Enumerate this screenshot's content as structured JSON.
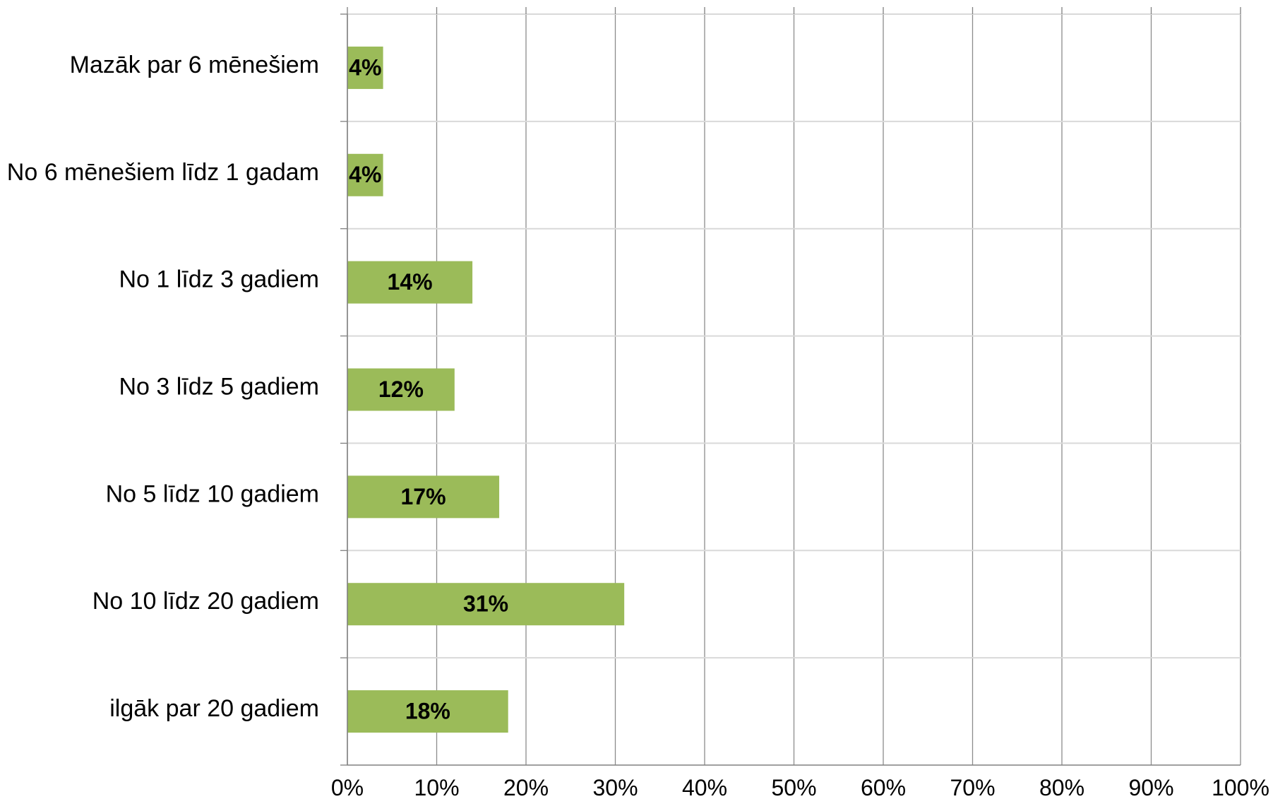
{
  "chart_data": {
    "type": "bar",
    "orientation": "horizontal",
    "categories": [
      "Mazāk par 6 mēnešiem",
      "No 6 mēnešiem līdz 1 gadam",
      "No 1 līdz 3 gadiem",
      "No 3 līdz 5 gadiem",
      "No 5 līdz 10 gadiem",
      "No 10 līdz 20 gadiem",
      "ilgāk par 20 gadiem"
    ],
    "values": [
      4,
      4,
      14,
      12,
      17,
      31,
      18
    ],
    "data_labels": [
      "4%",
      "4%",
      "14%",
      "12%",
      "17%",
      "31%",
      "18%"
    ],
    "x_ticks": [
      "0%",
      "10%",
      "20%",
      "30%",
      "40%",
      "50%",
      "60%",
      "70%",
      "80%",
      "90%",
      "100%"
    ],
    "xlim": [
      0,
      100
    ],
    "grid": true,
    "legend": false,
    "bar_color": "#9BBB59",
    "grid_color": "#D9D9D9",
    "axis_color": "#808080"
  }
}
